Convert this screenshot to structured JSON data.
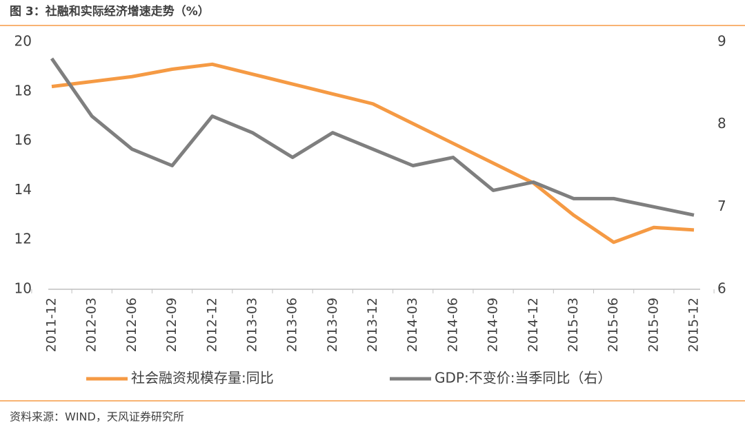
{
  "chart_data": {
    "type": "line",
    "title": "图 3：社融和实际经济增速走势（%）",
    "source": "资料来源：WIND，天风证券研究所",
    "categories": [
      "2011-12",
      "2012-03",
      "2012-06",
      "2012-09",
      "2012-12",
      "2013-03",
      "2013-06",
      "2013-09",
      "2013-12",
      "2014-03",
      "2014-06",
      "2014-09",
      "2014-12",
      "2015-03",
      "2015-06",
      "2015-09",
      "2015-12"
    ],
    "series": [
      {
        "name": "社会融资规模存量:同比",
        "color": "#f59a44",
        "values": [
          18.2,
          18.4,
          18.6,
          18.9,
          19.1,
          18.7,
          18.3,
          17.9,
          17.5,
          16.7,
          15.9,
          15.1,
          14.3,
          13.0,
          11.9,
          12.5,
          12.4
        ]
      },
      {
        "name": "GDP:不变价:当季同比（右）",
        "color": "#7f7f7f",
        "axis": "y2",
        "values": [
          8.8,
          8.1,
          7.7,
          7.5,
          8.1,
          7.9,
          7.6,
          7.9,
          7.7,
          7.5,
          7.6,
          7.2,
          7.3,
          7.1,
          7.1,
          7.0,
          6.9
        ]
      }
    ],
    "ylim": [
      10,
      20
    ],
    "yticks": [
      10,
      12,
      14,
      16,
      18,
      20
    ],
    "y2lim": [
      6,
      9
    ],
    "y2ticks": [
      6,
      7,
      8,
      9
    ],
    "grid": false,
    "legend": "bottom"
  }
}
